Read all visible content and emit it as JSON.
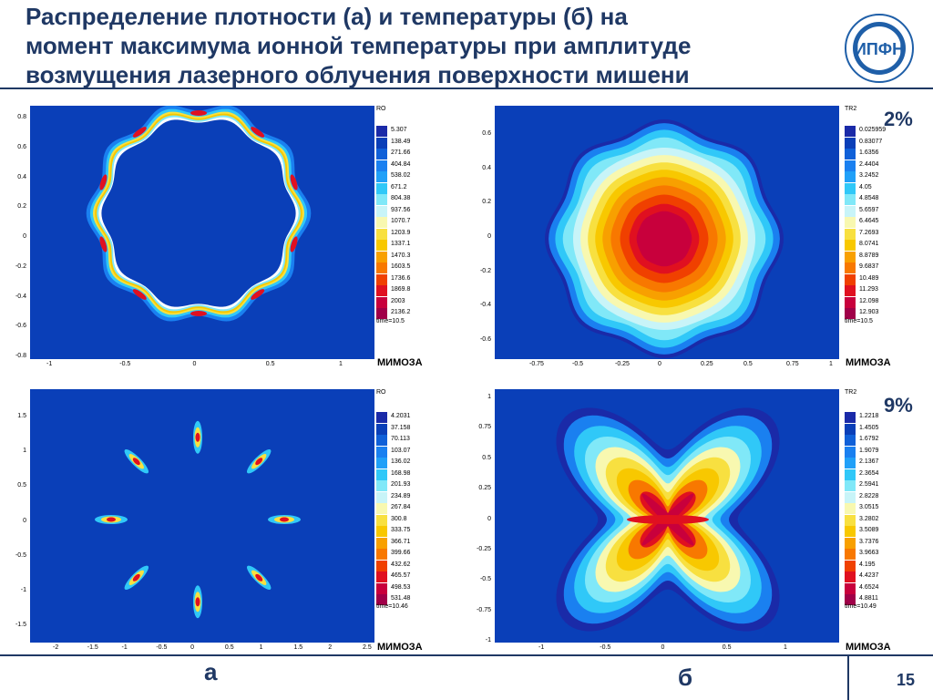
{
  "title_lines": [
    "Распределение плотности (а) и температуры (б) на",
    "момент максимума ионной температуры при амплитуде",
    "возмущения лазерного облучения поверхности мишени"
  ],
  "logo_text": "ИПФН",
  "bottom": {
    "label_a": "а",
    "label_b": "б",
    "page_number": "15"
  },
  "panels": {
    "tl": {
      "var": "RO",
      "time": "time=10.5",
      "brand": "МИМОЗА",
      "x_ticks": [
        "-1",
        "-0.5",
        "0",
        "0.5",
        "1"
      ],
      "y_ticks": [
        "0.8",
        "0.6",
        "0.4",
        "0.2",
        "0",
        "-0.2",
        "-0.4",
        "-0.6",
        "-0.8"
      ],
      "legend": [
        "5.307",
        "138.49",
        "271.66",
        "404.84",
        "538.02",
        "671.2",
        "804.38",
        "937.56",
        "1070.7",
        "1203.9",
        "1337.1",
        "1470.3",
        "1603.5",
        "1736.6",
        "1869.8",
        "2003",
        "2136.2"
      ]
    },
    "tr": {
      "var": "TR2",
      "time": "time=10.5",
      "brand": "МИМОЗА",
      "percent": "2%",
      "x_ticks": [
        "-0.75",
        "-0.5",
        "-0.25",
        "0",
        "0.25",
        "0.5",
        "0.75",
        "1"
      ],
      "y_ticks": [
        "0.6",
        "0.4",
        "0.2",
        "0",
        "-0.2",
        "-0.4",
        "-0.6"
      ],
      "legend": [
        "0.025959",
        "0.83077",
        "1.6356",
        "2.4404",
        "3.2452",
        "4.05",
        "4.8548",
        "5.6597",
        "6.4645",
        "7.2693",
        "8.0741",
        "8.8789",
        "9.6837",
        "10.489",
        "11.293",
        "12.098",
        "12.903"
      ]
    },
    "bl": {
      "var": "RO",
      "time": "time=10.46",
      "brand": "МИМОЗА",
      "x_ticks": [
        "-2",
        "-1.5",
        "-1",
        "-0.5",
        "0",
        "0.5",
        "1",
        "1.5",
        "2",
        "2.5"
      ],
      "y_ticks": [
        "1.5",
        "1",
        "0.5",
        "0",
        "-0.5",
        "-1",
        "-1.5"
      ],
      "legend": [
        "4.2031",
        "37.158",
        "70.113",
        "103.07",
        "136.02",
        "168.98",
        "201.93",
        "234.89",
        "267.84",
        "300.8",
        "333.75",
        "366.71",
        "399.66",
        "432.62",
        "465.57",
        "498.53",
        "531.48"
      ]
    },
    "br": {
      "var": "TR2",
      "time": "time=10.49",
      "brand": "МИМОЗА",
      "percent": "9%",
      "x_ticks": [
        "-1",
        "-0.5",
        "0",
        "0.5",
        "1"
      ],
      "y_ticks": [
        "1",
        "0.75",
        "0.5",
        "0.25",
        "0",
        "-0.25",
        "-0.5",
        "-0.75",
        "-1"
      ],
      "legend": [
        "1.2218",
        "1.4505",
        "1.6792",
        "1.9079",
        "2.1367",
        "2.3654",
        "2.5941",
        "2.8228",
        "3.0515",
        "3.2802",
        "3.5089",
        "3.7376",
        "3.9663",
        "4.195",
        "4.4237",
        "4.6524",
        "4.8811"
      ]
    }
  },
  "colors": {
    "scale": [
      "#1a2aa8",
      "#0a3fb8",
      "#1060d8",
      "#1a80f0",
      "#20a0f8",
      "#30c8f8",
      "#80e8f8",
      "#c8f4f8",
      "#f8f8b0",
      "#f8e040",
      "#f8c800",
      "#f8a000",
      "#f87800",
      "#f04000",
      "#e01020",
      "#c8003c",
      "#a00048"
    ],
    "background": "#0a3fb8",
    "title": "#1f3864"
  }
}
